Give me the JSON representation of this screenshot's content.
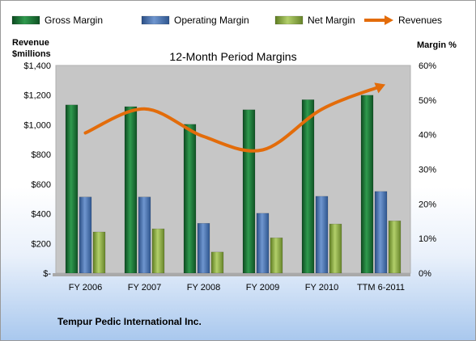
{
  "chart_data": {
    "type": "bar",
    "title": "12-Month Period Margins",
    "categories": [
      "FY 2006",
      "FY 2007",
      "FY 2008",
      "FY 2009",
      "FY 2010",
      "TTM 6-2011"
    ],
    "left_axis": {
      "label_line1": "Revenue",
      "label_line2": "$millions",
      "ylim": [
        0,
        1400
      ],
      "ticks": [
        0,
        200,
        400,
        600,
        800,
        1000,
        1200,
        1400
      ],
      "tick_labels": [
        "$-",
        "$200",
        "$400",
        "$600",
        "$800",
        "$1,000",
        "$1,200",
        "$1,400"
      ]
    },
    "right_axis": {
      "label": "Margin %",
      "ylim": [
        0,
        60
      ],
      "ticks": [
        0,
        10,
        20,
        30,
        40,
        50,
        60
      ],
      "tick_labels": [
        "0%",
        "10%",
        "20%",
        "30%",
        "40%",
        "50%",
        "60%"
      ]
    },
    "series": [
      {
        "name": "Gross Margin",
        "kind": "bar",
        "axis": "right",
        "color": "#1f7a3a",
        "values": [
          48.6,
          48.1,
          43.0,
          47.2,
          50.1,
          51.4
        ]
      },
      {
        "name": "Operating Margin",
        "kind": "bar",
        "axis": "right",
        "color": "#4a72b0",
        "values": [
          22.0,
          22.0,
          14.4,
          17.3,
          22.2,
          23.6
        ]
      },
      {
        "name": "Net Margin",
        "kind": "bar",
        "axis": "right",
        "color": "#8fb24a",
        "values": [
          11.9,
          12.8,
          6.1,
          10.2,
          14.2,
          15.1
        ]
      },
      {
        "name": "Revenues",
        "kind": "line",
        "axis": "left",
        "color": "#e36c0a",
        "values": [
          945,
          1107,
          921,
          831,
          1105,
          1260
        ]
      }
    ],
    "grid": false,
    "legend": "top",
    "plot_background": "#c6c6c6",
    "footer": "Tempur Pedic International Inc."
  }
}
